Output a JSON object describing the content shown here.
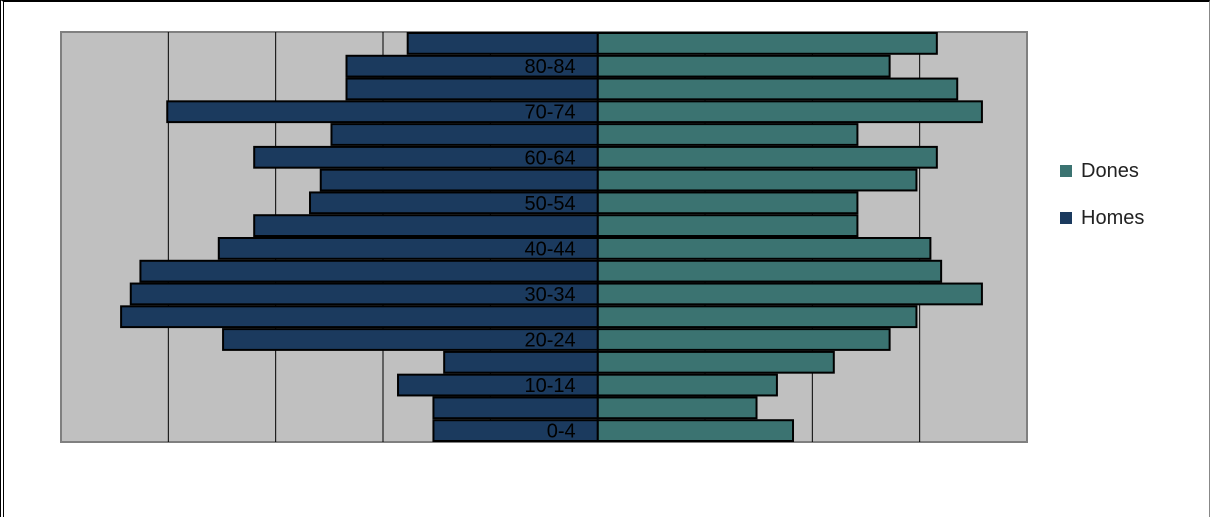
{
  "chart_data": {
    "type": "bar",
    "orientation": "horizontal",
    "layout": "population-pyramid",
    "title": "",
    "xlabel": "",
    "ylabel": "",
    "grid": true,
    "legend_position": "right",
    "categories": [
      "0-4",
      "5-9",
      "10-14",
      "15-19",
      "20-24",
      "25-29",
      "30-34",
      "35-39",
      "40-44",
      "45-49",
      "50-54",
      "55-59",
      "60-64",
      "65-69",
      "70-74",
      "75-79",
      "80-84",
      "85+"
    ],
    "visible_category_labels": [
      "0-4",
      "10-14",
      "20-24",
      "30-34",
      "40-44",
      "50-54",
      "60-64",
      "70-74",
      "80-84"
    ],
    "xlim": [
      -5,
      4
    ],
    "series": [
      {
        "name": "Dones",
        "color": "#3b7371",
        "values": [
          1.82,
          1.48,
          1.67,
          2.2,
          2.72,
          2.97,
          3.58,
          3.2,
          3.1,
          2.42,
          2.42,
          2.97,
          3.16,
          2.42,
          3.58,
          3.35,
          2.72,
          3.16
        ]
      },
      {
        "name": "Homes",
        "color": "#1b3a5e",
        "values": [
          -1.53,
          -1.53,
          -1.86,
          -1.43,
          -3.49,
          -4.44,
          -4.35,
          -4.26,
          -3.53,
          -3.2,
          -2.68,
          -2.58,
          -3.2,
          -2.48,
          -4.01,
          -2.34,
          -2.34,
          -1.77
        ]
      }
    ]
  }
}
